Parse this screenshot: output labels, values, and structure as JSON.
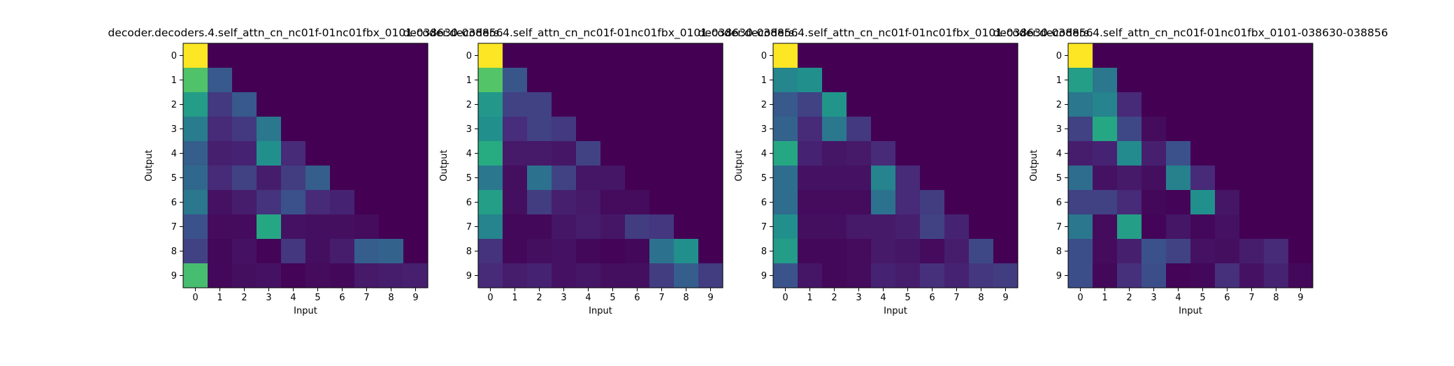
{
  "figure": {
    "background": "#ffffff",
    "colormap": "viridis",
    "vmin": 0,
    "vmax": 1
  },
  "chart_data": [
    {
      "type": "heatmap",
      "title": "decoder.decoders.4.self_attn_cn_nc01f-01nc01fbx_0101-038630-038856",
      "xlabel": "Input",
      "ylabel": "Output",
      "x_ticks": [
        "0",
        "1",
        "2",
        "3",
        "4",
        "5",
        "6",
        "7",
        "8",
        "9"
      ],
      "y_ticks": [
        "0",
        "1",
        "2",
        "3",
        "4",
        "5",
        "6",
        "7",
        "8",
        "9"
      ],
      "values": [
        [
          1.0,
          0.0,
          0.0,
          0.0,
          0.0,
          0.0,
          0.0,
          0.0,
          0.0,
          0.0
        ],
        [
          0.72,
          0.28,
          0.0,
          0.0,
          0.0,
          0.0,
          0.0,
          0.0,
          0.0,
          0.0
        ],
        [
          0.55,
          0.17,
          0.28,
          0.0,
          0.0,
          0.0,
          0.0,
          0.0,
          0.0,
          0.0
        ],
        [
          0.42,
          0.12,
          0.17,
          0.4,
          0.0,
          0.0,
          0.0,
          0.0,
          0.0,
          0.0
        ],
        [
          0.3,
          0.09,
          0.1,
          0.5,
          0.12,
          0.0,
          0.0,
          0.0,
          0.0,
          0.0
        ],
        [
          0.34,
          0.12,
          0.2,
          0.08,
          0.18,
          0.3,
          0.0,
          0.0,
          0.0,
          0.0
        ],
        [
          0.4,
          0.05,
          0.08,
          0.15,
          0.25,
          0.12,
          0.1,
          0.0,
          0.0,
          0.0
        ],
        [
          0.25,
          0.03,
          0.03,
          0.6,
          0.05,
          0.04,
          0.04,
          0.03,
          0.0,
          0.0
        ],
        [
          0.2,
          0.02,
          0.05,
          0.01,
          0.16,
          0.04,
          0.08,
          0.3,
          0.32,
          0.0
        ],
        [
          0.7,
          0.02,
          0.04,
          0.05,
          0.01,
          0.03,
          0.02,
          0.07,
          0.08,
          0.09
        ]
      ]
    },
    {
      "type": "heatmap",
      "title": "decoder.decoders.4.self_attn_cn_nc01f-01nc01fbx_0101-038630-038856",
      "xlabel": "Input",
      "ylabel": "Output",
      "x_ticks": [
        "0",
        "1",
        "2",
        "3",
        "4",
        "5",
        "6",
        "7",
        "8",
        "9"
      ],
      "y_ticks": [
        "0",
        "1",
        "2",
        "3",
        "4",
        "5",
        "6",
        "7",
        "8",
        "9"
      ],
      "values": [
        [
          1.0,
          0.0,
          0.0,
          0.0,
          0.0,
          0.0,
          0.0,
          0.0,
          0.0,
          0.0
        ],
        [
          0.73,
          0.27,
          0.0,
          0.0,
          0.0,
          0.0,
          0.0,
          0.0,
          0.0,
          0.0
        ],
        [
          0.53,
          0.2,
          0.2,
          0.0,
          0.0,
          0.0,
          0.0,
          0.0,
          0.0,
          0.0
        ],
        [
          0.5,
          0.13,
          0.2,
          0.17,
          0.0,
          0.0,
          0.0,
          0.0,
          0.0,
          0.0
        ],
        [
          0.62,
          0.07,
          0.07,
          0.06,
          0.2,
          0.0,
          0.0,
          0.0,
          0.0,
          0.0
        ],
        [
          0.4,
          0.04,
          0.38,
          0.2,
          0.06,
          0.06,
          0.0,
          0.0,
          0.0,
          0.0
        ],
        [
          0.56,
          0.04,
          0.18,
          0.09,
          0.07,
          0.03,
          0.03,
          0.0,
          0.0,
          0.0
        ],
        [
          0.45,
          0.02,
          0.02,
          0.06,
          0.08,
          0.06,
          0.18,
          0.16,
          0.0,
          0.0
        ],
        [
          0.15,
          0.02,
          0.04,
          0.05,
          0.02,
          0.01,
          0.02,
          0.38,
          0.5,
          0.0
        ],
        [
          0.12,
          0.08,
          0.1,
          0.05,
          0.06,
          0.04,
          0.04,
          0.18,
          0.3,
          0.18
        ]
      ]
    },
    {
      "type": "heatmap",
      "title": "decoder.decoders.4.self_attn_cn_nc01f-01nc01fbx_0101-038630-038856",
      "xlabel": "Input",
      "ylabel": "Output",
      "x_ticks": [
        "0",
        "1",
        "2",
        "3",
        "4",
        "5",
        "6",
        "7",
        "8",
        "9"
      ],
      "y_ticks": [
        "0",
        "1",
        "2",
        "3",
        "4",
        "5",
        "6",
        "7",
        "8",
        "9"
      ],
      "values": [
        [
          1.0,
          0.0,
          0.0,
          0.0,
          0.0,
          0.0,
          0.0,
          0.0,
          0.0,
          0.0
        ],
        [
          0.46,
          0.5,
          0.0,
          0.0,
          0.0,
          0.0,
          0.0,
          0.0,
          0.0,
          0.0
        ],
        [
          0.28,
          0.2,
          0.52,
          0.0,
          0.0,
          0.0,
          0.0,
          0.0,
          0.0,
          0.0
        ],
        [
          0.32,
          0.12,
          0.4,
          0.17,
          0.0,
          0.0,
          0.0,
          0.0,
          0.0,
          0.0
        ],
        [
          0.6,
          0.1,
          0.06,
          0.07,
          0.12,
          0.0,
          0.0,
          0.0,
          0.0,
          0.0
        ],
        [
          0.36,
          0.05,
          0.05,
          0.05,
          0.45,
          0.12,
          0.0,
          0.0,
          0.0,
          0.0
        ],
        [
          0.36,
          0.03,
          0.03,
          0.03,
          0.38,
          0.12,
          0.18,
          0.0,
          0.0,
          0.0
        ],
        [
          0.5,
          0.04,
          0.04,
          0.07,
          0.07,
          0.09,
          0.2,
          0.1,
          0.0,
          0.0
        ],
        [
          0.55,
          0.02,
          0.02,
          0.03,
          0.07,
          0.06,
          0.03,
          0.08,
          0.22,
          0.0
        ],
        [
          0.26,
          0.06,
          0.02,
          0.03,
          0.1,
          0.08,
          0.14,
          0.1,
          0.16,
          0.18
        ]
      ]
    },
    {
      "type": "heatmap",
      "title": "decoder.decoders.4.self_attn_cn_nc01f-01nc01fbx_0101-038630-038856",
      "xlabel": "Input",
      "ylabel": "Output",
      "x_ticks": [
        "0",
        "1",
        "2",
        "3",
        "4",
        "5",
        "6",
        "7",
        "8",
        "9"
      ],
      "y_ticks": [
        "0",
        "1",
        "2",
        "3",
        "4",
        "5",
        "6",
        "7",
        "8",
        "9"
      ],
      "values": [
        [
          1.0,
          0.0,
          0.0,
          0.0,
          0.0,
          0.0,
          0.0,
          0.0,
          0.0,
          0.0
        ],
        [
          0.56,
          0.4,
          0.0,
          0.0,
          0.0,
          0.0,
          0.0,
          0.0,
          0.0,
          0.0
        ],
        [
          0.4,
          0.45,
          0.12,
          0.0,
          0.0,
          0.0,
          0.0,
          0.0,
          0.0,
          0.0
        ],
        [
          0.2,
          0.6,
          0.22,
          0.03,
          0.0,
          0.0,
          0.0,
          0.0,
          0.0,
          0.0
        ],
        [
          0.08,
          0.1,
          0.48,
          0.09,
          0.25,
          0.0,
          0.0,
          0.0,
          0.0,
          0.0
        ],
        [
          0.36,
          0.05,
          0.07,
          0.04,
          0.44,
          0.12,
          0.0,
          0.0,
          0.0,
          0.0
        ],
        [
          0.2,
          0.2,
          0.12,
          0.02,
          0.01,
          0.5,
          0.06,
          0.0,
          0.0,
          0.0
        ],
        [
          0.4,
          0.03,
          0.56,
          0.01,
          0.06,
          0.02,
          0.05,
          0.0,
          0.0,
          0.0
        ],
        [
          0.24,
          0.03,
          0.09,
          0.25,
          0.2,
          0.05,
          0.04,
          0.08,
          0.12,
          0.0
        ],
        [
          0.24,
          0.02,
          0.14,
          0.24,
          0.01,
          0.02,
          0.14,
          0.05,
          0.1,
          0.02
        ]
      ]
    }
  ]
}
